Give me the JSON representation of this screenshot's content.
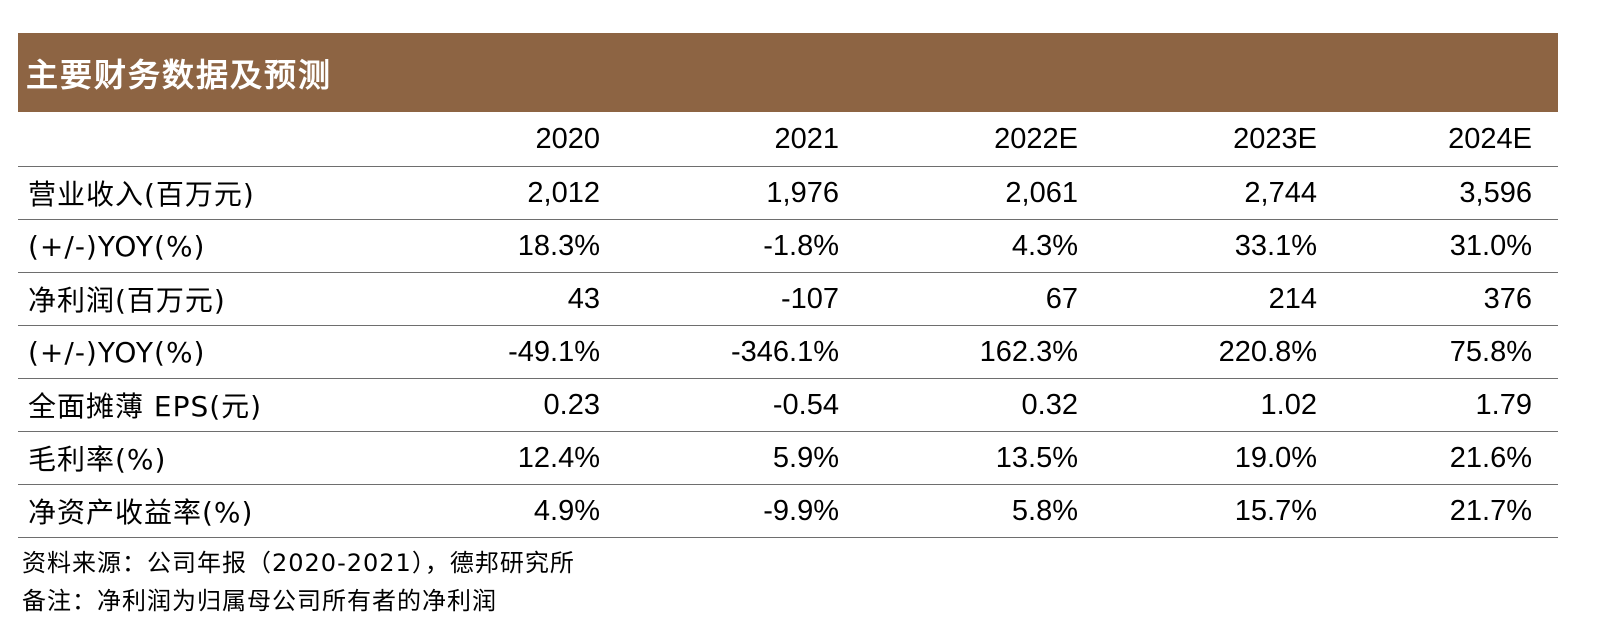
{
  "title": "主要财务数据及预测",
  "table": {
    "header_label": "",
    "columns": [
      "2020",
      "2021",
      "2022E",
      "2023E",
      "2024E"
    ],
    "rows": [
      {
        "label": "营业收入(百万元)",
        "values": [
          "2,012",
          "1,976",
          "2,061",
          "2,744",
          "3,596"
        ]
      },
      {
        "label": "(+/-)YOY(%)",
        "values": [
          "18.3%",
          "-1.8%",
          "4.3%",
          "33.1%",
          "31.0%"
        ]
      },
      {
        "label": "净利润(百万元)",
        "values": [
          "43",
          "-107",
          "67",
          "214",
          "376"
        ]
      },
      {
        "label": "(+/-)YOY(%)",
        "values": [
          "-49.1%",
          "-346.1%",
          "162.3%",
          "220.8%",
          "75.8%"
        ]
      },
      {
        "label": "全面摊薄 EPS(元)",
        "values": [
          "0.23",
          "-0.54",
          "0.32",
          "1.02",
          "1.79"
        ]
      },
      {
        "label": "毛利率(%)",
        "values": [
          "12.4%",
          "5.9%",
          "13.5%",
          "19.0%",
          "21.6%"
        ]
      },
      {
        "label": "净资产收益率(%)",
        "values": [
          "4.9%",
          "-9.9%",
          "5.8%",
          "15.7%",
          "21.7%"
        ]
      }
    ]
  },
  "notes": {
    "source": "资料来源：公司年报（2020-2021），德邦研究所",
    "remark": "备注：净利润为归属母公司所有者的净利润"
  },
  "colors": {
    "title_bar": "#8d6443",
    "title_text": "#ffffff",
    "rule": "#6e6e6e"
  }
}
